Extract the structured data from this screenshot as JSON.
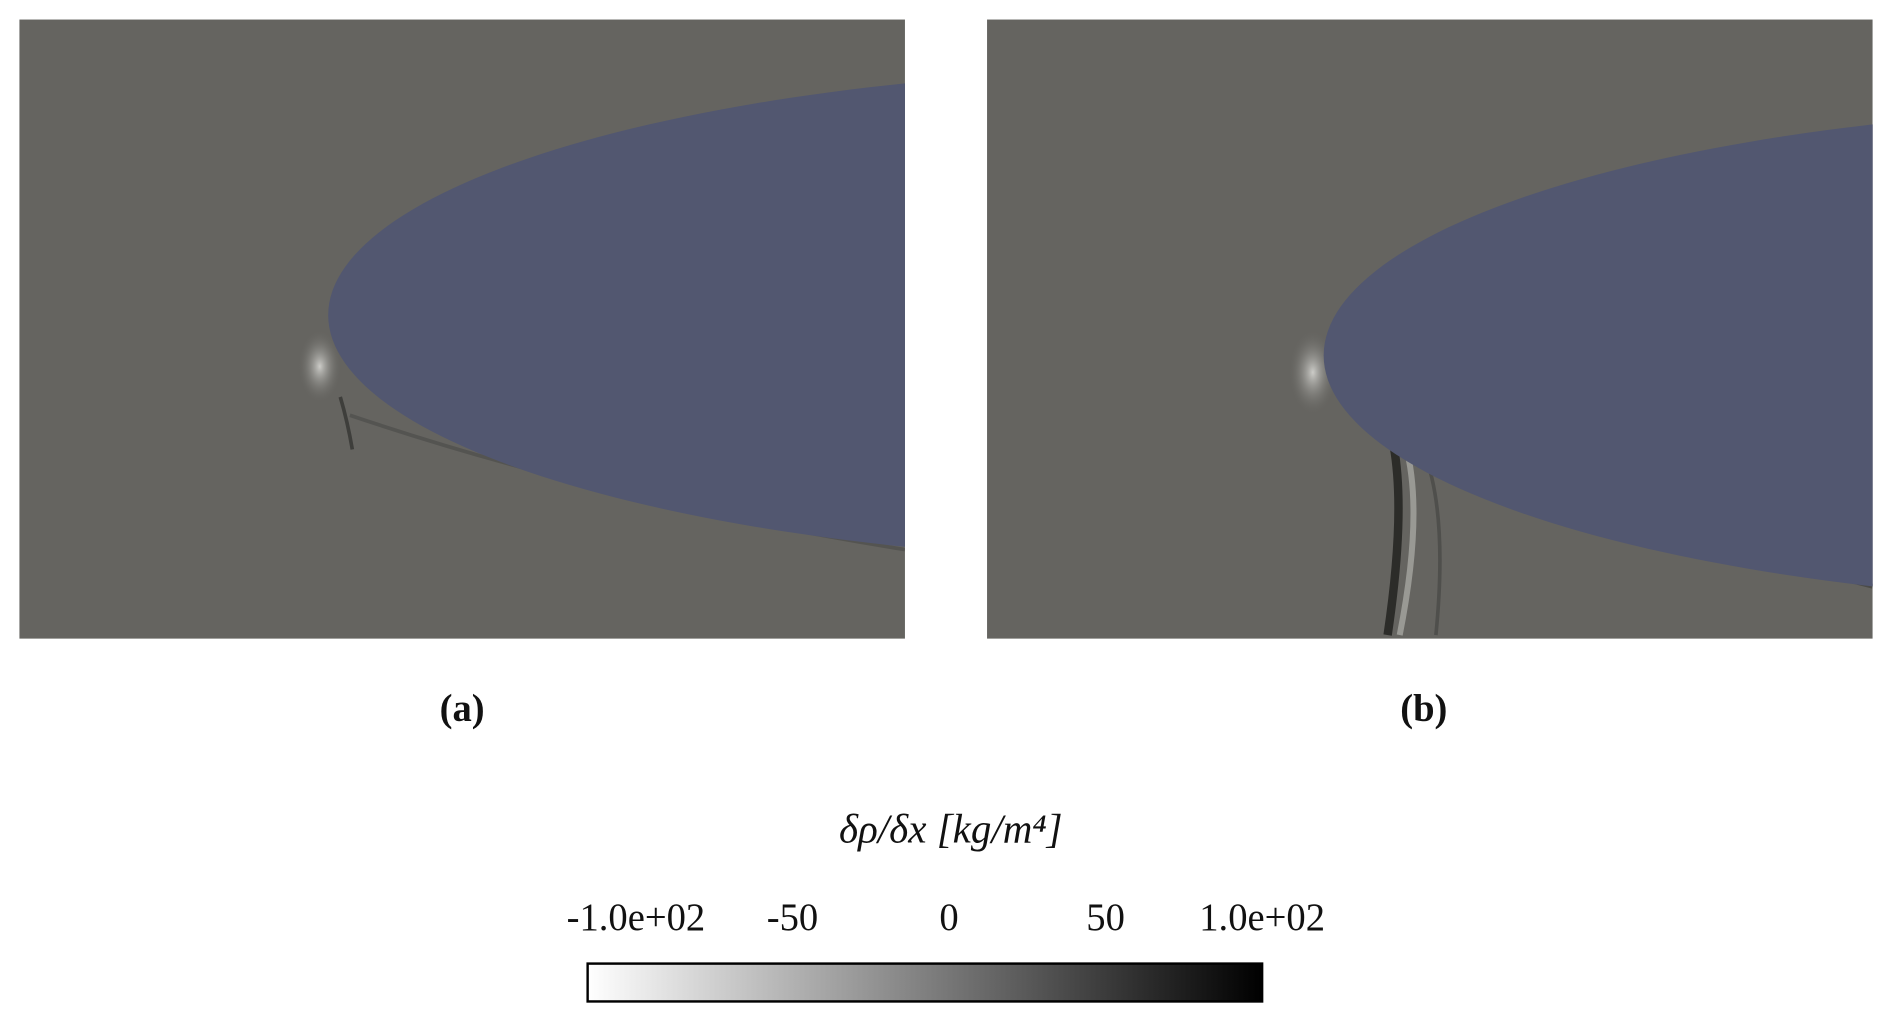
{
  "chart_data": {
    "type": "colorbar",
    "panels": [
      "(a)",
      "(b)"
    ],
    "colorbar": {
      "title": "δρ/δx [kg/m⁴]",
      "lim": [
        -100,
        100
      ],
      "colors": [
        "#ffffff",
        "#000000"
      ],
      "ticks": [
        {
          "value": -100,
          "label": "-1.0e+02"
        },
        -50,
        0,
        50,
        {
          "value": 100,
          "label": "1.0e+02"
        }
      ]
    }
  }
}
